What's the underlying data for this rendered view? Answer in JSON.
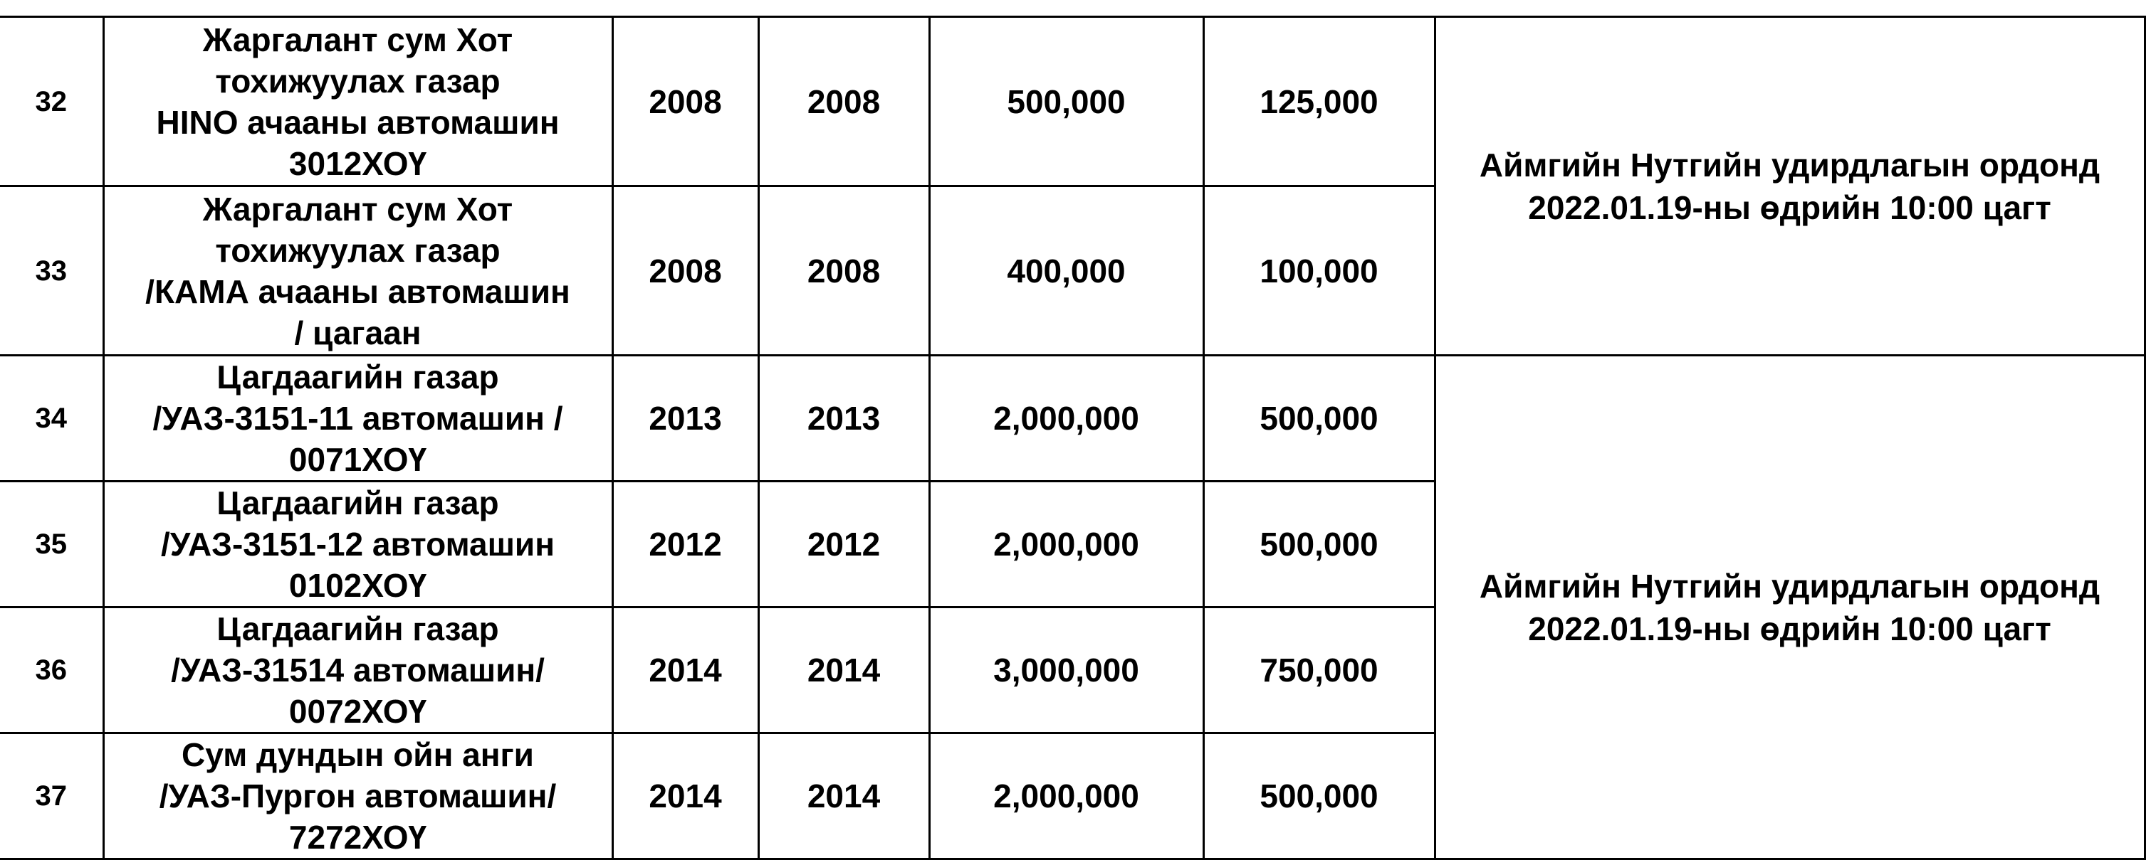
{
  "rows": [
    {
      "num": "32",
      "desc_lines": [
        "Жаргалант сум Хот",
        "тохижуулах газар",
        "HINO ачааны автомашин",
        "3012ХОҮ"
      ],
      "year1": "2008",
      "year2": "2008",
      "value1": "500,000",
      "value2": "125,000"
    },
    {
      "num": "33",
      "desc_lines": [
        "Жаргалант сум Хот",
        "тохижуулах газар",
        "/КАМА ачааны автомашин",
        "/ цагаан"
      ],
      "year1": "2008",
      "year2": "2008",
      "value1": "400,000",
      "value2": "100,000"
    },
    {
      "num": "34",
      "desc_lines": [
        "Цагдаагийн газар",
        "/УАЗ-3151-11 автомашин /",
        "0071ХОҮ"
      ],
      "year1": "2013",
      "year2": "2013",
      "value1": "2,000,000",
      "value2": "500,000"
    },
    {
      "num": "35",
      "desc_lines": [
        "Цагдаагийн газар",
        "/УАЗ-3151-12 автомашин",
        "0102ХОҮ"
      ],
      "year1": "2012",
      "year2": "2012",
      "value1": "2,000,000",
      "value2": "500,000"
    },
    {
      "num": "36",
      "desc_lines": [
        "Цагдаагийн газар",
        "/УАЗ-31514 автомашин/",
        "0072ХОҮ"
      ],
      "year1": "2014",
      "year2": "2014",
      "value1": "3,000,000",
      "value2": "750,000"
    },
    {
      "num": "37",
      "desc_lines": [
        "Сум дундын ойн анги",
        "/УАЗ-Пургон автомашин/",
        "7272ХОҮ"
      ],
      "year1": "2014",
      "year2": "2014",
      "value1": "2,000,000",
      "value2": "500,000"
    }
  ],
  "groups": [
    {
      "lines": [
        "Аймгийн Нутгийн удирдлагын ордонд",
        "2022.01.19-ны өдрийн 10:00 цагт"
      ]
    },
    {
      "lines": [
        "Аймгийн Нутгийн удирдлагын ордонд",
        "2022.01.19-ны өдрийн 10:00 цагт"
      ]
    }
  ]
}
